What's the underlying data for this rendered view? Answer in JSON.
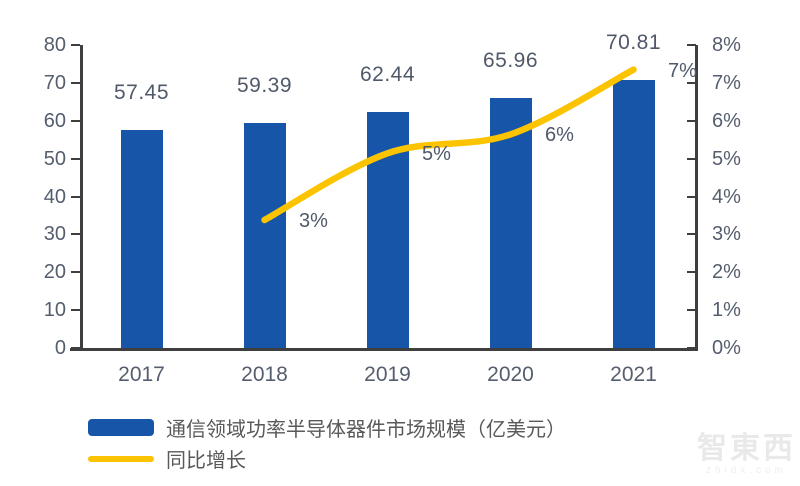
{
  "chart_data": {
    "type": "combo",
    "title": "",
    "categories": [
      "2017",
      "2018",
      "2019",
      "2020",
      "2021"
    ],
    "series": [
      {
        "name": "通信领域功率半导体器件市场规模（亿美元）",
        "type": "bar",
        "axis": "left",
        "color": "#1755a8",
        "values": [
          57.45,
          59.39,
          62.44,
          65.96,
          70.81
        ],
        "data_labels": [
          "57.45",
          "59.39",
          "62.44",
          "65.96",
          "70.81"
        ]
      },
      {
        "name": "同比增长",
        "type": "line",
        "axis": "right",
        "color": "#fbc300",
        "values": [
          null,
          3.38,
          5.14,
          5.64,
          7.35
        ],
        "data_labels": [
          null,
          "3%",
          "5%",
          "6%",
          "7%"
        ]
      }
    ],
    "left_axis": {
      "min": 0,
      "max": 80,
      "step": 10,
      "tick_labels": [
        "0",
        "10",
        "20",
        "30",
        "40",
        "50",
        "60",
        "70",
        "80"
      ]
    },
    "right_axis": {
      "min": 0,
      "max": 8,
      "step": 1,
      "tick_labels": [
        "0%",
        "1%",
        "2%",
        "3%",
        "4%",
        "5%",
        "6%",
        "7%",
        "8%"
      ]
    },
    "grid": false,
    "legend_position": "bottom-left"
  },
  "legend": {
    "items": [
      {
        "label": "通信领域功率半导体器件市场规模（亿美元）",
        "swatch": "bar",
        "color": "#1755a8"
      },
      {
        "label": "同比增长",
        "swatch": "line",
        "color": "#fbc300"
      }
    ]
  },
  "watermark": {
    "line1": "智東西",
    "line2": "zhidx.com"
  },
  "colors": {
    "bar": "#1755a8",
    "line": "#fbc300",
    "axis": "#3f3f3f",
    "axis_text": "#555e6e",
    "legend_text": "#595959"
  }
}
